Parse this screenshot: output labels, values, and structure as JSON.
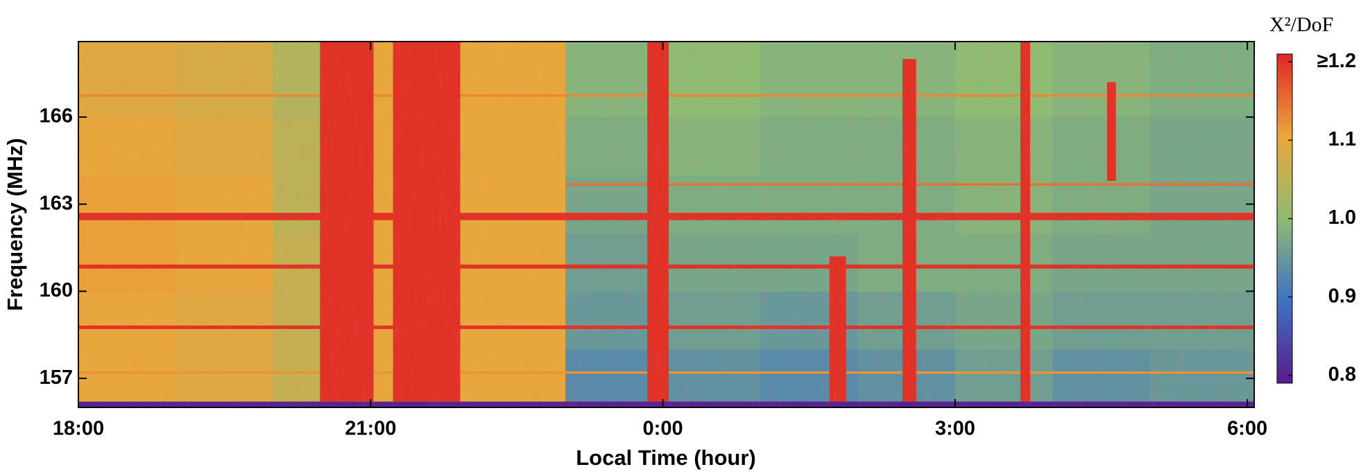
{
  "chart_data": {
    "type": "heatmap",
    "xlabel": "Local Time (hour)",
    "ylabel": "Frequency (MHz)",
    "colorbar_label": "X²/DoF",
    "xlim": [
      18,
      30.07
    ],
    "ylim": [
      156.0,
      168.6
    ],
    "xticks": [
      {
        "value": 18,
        "label": "18:00"
      },
      {
        "value": 21,
        "label": "21:00"
      },
      {
        "value": 24,
        "label": "0:00"
      },
      {
        "value": 27,
        "label": "3:00"
      },
      {
        "value": 30,
        "label": "6:00"
      }
    ],
    "yticks": [
      157,
      160,
      163,
      166
    ],
    "clim": [
      0.79,
      1.21
    ],
    "cticks": [
      0.8,
      0.9,
      {
        "value": 1.0,
        "label": "1.0"
      },
      1.1,
      {
        "value": 1.2,
        "label": "≥1.2"
      }
    ],
    "colormap": [
      "#5a1a8c",
      "#3d72c4",
      "#8fbb72",
      "#eba63a",
      "#e02626"
    ],
    "x_bins": [
      18,
      19,
      20,
      21,
      22,
      23,
      24,
      25,
      26,
      27,
      28,
      29,
      30,
      30.07
    ],
    "y_bins": [
      156,
      158,
      160,
      162,
      164,
      166,
      168.6
    ],
    "values": [
      [
        1.1,
        1.09,
        1.06,
        1.1,
        1.1,
        0.93,
        0.94,
        0.93,
        0.94,
        0.96,
        0.94,
        0.95,
        0.95
      ],
      [
        1.1,
        1.09,
        1.06,
        1.1,
        1.1,
        0.95,
        0.96,
        0.95,
        0.96,
        0.97,
        0.96,
        0.96,
        0.96
      ],
      [
        1.11,
        1.1,
        1.06,
        1.1,
        1.1,
        0.96,
        0.97,
        0.97,
        0.98,
        0.98,
        0.97,
        0.97,
        0.97
      ],
      [
        1.11,
        1.1,
        1.05,
        1.1,
        1.1,
        0.97,
        0.98,
        0.98,
        0.98,
        0.99,
        0.98,
        0.97,
        0.97
      ],
      [
        1.1,
        1.09,
        1.05,
        1.1,
        1.1,
        0.98,
        0.99,
        0.98,
        0.98,
        0.99,
        0.98,
        0.97,
        0.97
      ],
      [
        1.09,
        1.08,
        1.04,
        1.1,
        1.1,
        0.99,
        1.0,
        0.99,
        0.99,
        1.0,
        0.99,
        0.98,
        0.98
      ]
    ],
    "vertical_bands": [
      {
        "x": [
          20.48,
          21.03
        ],
        "y": [
          156.2,
          168.6
        ],
        "value": 1.2
      },
      {
        "x": [
          21.23,
          21.92
        ],
        "y": [
          156.2,
          168.6
        ],
        "value": 1.2
      },
      {
        "x": [
          23.84,
          24.06
        ],
        "y": [
          156.2,
          168.6
        ],
        "value": 1.2
      },
      {
        "x": [
          25.71,
          25.88
        ],
        "y": [
          156.2,
          161.2
        ],
        "value": 1.2
      },
      {
        "x": [
          26.46,
          26.6
        ],
        "y": [
          156.2,
          168.0
        ],
        "value": 1.2
      },
      {
        "x": [
          27.67,
          27.77
        ],
        "y": [
          156.2,
          168.6
        ],
        "value": 1.2
      },
      {
        "x": [
          28.56,
          28.65
        ],
        "y": [
          163.8,
          167.2
        ],
        "value": 1.2
      }
    ],
    "horizontal_lines": [
      {
        "y": [
          162.45,
          162.7
        ],
        "x": [
          18,
          30.07
        ],
        "value": 1.2
      },
      {
        "y": [
          160.78,
          160.92
        ],
        "x": [
          18,
          30.07
        ],
        "value": 1.2
      },
      {
        "y": [
          158.7,
          158.82
        ],
        "x": [
          18,
          30.07
        ],
        "value": 1.2
      },
      {
        "y": [
          163.64,
          163.72
        ],
        "x": [
          23,
          30.07
        ],
        "value": 1.15
      },
      {
        "y": [
          166.7,
          166.78
        ],
        "x": [
          18,
          30.07
        ],
        "value": 1.13
      },
      {
        "y": [
          157.16,
          157.24
        ],
        "x": [
          18,
          30.07
        ],
        "value": 1.12
      },
      {
        "y": [
          156.0,
          156.2
        ],
        "x": [
          18,
          30.07
        ],
        "value": 0.8
      }
    ]
  }
}
